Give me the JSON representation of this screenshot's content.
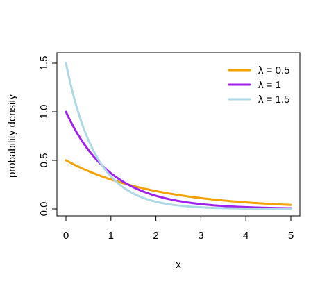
{
  "chart_data": {
    "type": "line",
    "title": "",
    "xlabel": "x",
    "ylabel": "probability density",
    "xlim": [
      0,
      5
    ],
    "ylim": [
      0,
      1.5
    ],
    "x_ticks": [
      "0",
      "1",
      "2",
      "3",
      "4",
      "5"
    ],
    "y_ticks": [
      "0.0",
      "0.5",
      "1.0",
      "1.5"
    ],
    "grid": false,
    "legend_position": "top-right",
    "x": [
      0,
      0.5,
      1,
      1.5,
      2,
      2.5,
      3,
      3.5,
      4,
      4.5,
      5
    ],
    "series": [
      {
        "name": "λ = 0.5",
        "color": "#f5a100",
        "values": [
          0.5,
          0.389,
          0.303,
          0.236,
          0.184,
          0.143,
          0.112,
          0.087,
          0.068,
          0.053,
          0.041
        ]
      },
      {
        "name": "λ = 1",
        "color": "#a020f0",
        "values": [
          1.0,
          0.607,
          0.368,
          0.223,
          0.135,
          0.082,
          0.05,
          0.03,
          0.018,
          0.011,
          0.007
        ]
      },
      {
        "name": "λ = 1.5",
        "color": "#add8e6",
        "values": [
          1.5,
          0.708,
          0.335,
          0.158,
          0.075,
          0.035,
          0.017,
          0.008,
          0.004,
          0.002,
          0.001
        ]
      }
    ]
  }
}
